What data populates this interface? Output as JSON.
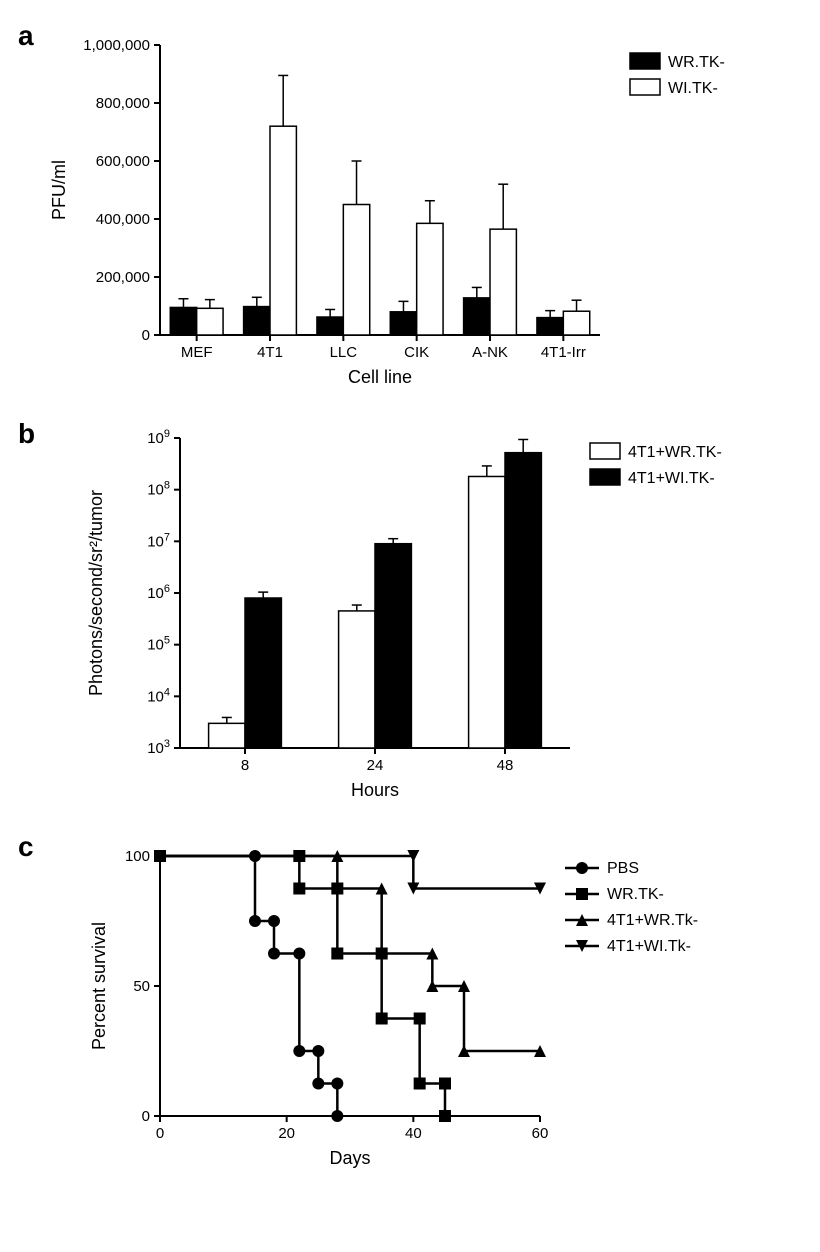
{
  "colors": {
    "bg": "#ffffff",
    "axis": "#000000",
    "text": "#000000",
    "black_fill": "#000000",
    "white_fill": "#ffffff",
    "stroke": "#000000"
  },
  "panel_label_fontsize": 28,
  "panel_a": {
    "label": "a",
    "type": "bar",
    "ylabel": "PFU/ml",
    "xlabel": "Cell line",
    "label_fontsize": 18,
    "tick_fontsize": 15,
    "legend_fontsize": 16,
    "ylim": [
      0,
      1000000
    ],
    "ytick_step": 200000,
    "yticks": [
      "0",
      "200,000",
      "400,000",
      "600,000",
      "800,000",
      "1,000,000"
    ],
    "categories": [
      "MEF",
      "4T1",
      "LLC",
      "CIK",
      "A-NK",
      "4T1-Irr"
    ],
    "series": [
      {
        "name": "WR.TK-",
        "fill": "#000000",
        "values": [
          95000,
          98000,
          62000,
          80000,
          128000,
          60000
        ],
        "errors": [
          30000,
          32000,
          26000,
          36000,
          36000,
          24000
        ]
      },
      {
        "name": "WI.TK-",
        "fill": "#ffffff",
        "values": [
          92000,
          720000,
          450000,
          385000,
          365000,
          82000
        ],
        "errors": [
          30000,
          175000,
          150000,
          78000,
          155000,
          38000
        ]
      }
    ],
    "bar_width": 0.36,
    "line_width": 2
  },
  "panel_b": {
    "label": "b",
    "type": "bar",
    "ylabel": "Photons/second/sr²/tumor",
    "xlabel": "Hours",
    "label_fontsize": 18,
    "tick_fontsize": 15,
    "legend_fontsize": 16,
    "ylog": true,
    "ylim_exp": [
      3,
      9
    ],
    "ytick_exp": [
      3,
      4,
      5,
      6,
      7,
      8,
      9
    ],
    "categories": [
      "8",
      "24",
      "48"
    ],
    "series": [
      {
        "name": "4T1+WR.TK-",
        "fill": "#ffffff",
        "values": [
          3000,
          450000,
          180000000
        ],
        "errors_factor": [
          1.3,
          1.3,
          1.6
        ]
      },
      {
        "name": "4T1+WI.TK-",
        "fill": "#000000",
        "values": [
          800000,
          9000000,
          520000000
        ],
        "errors_factor": [
          1.3,
          1.25,
          1.8
        ]
      }
    ],
    "bar_width": 0.28,
    "line_width": 2
  },
  "panel_c": {
    "label": "c",
    "type": "step-line",
    "ylabel": "Percent survival",
    "xlabel": "Days",
    "label_fontsize": 18,
    "tick_fontsize": 15,
    "legend_fontsize": 16,
    "xlim": [
      0,
      60
    ],
    "xtick_step": 20,
    "ylim": [
      0,
      100
    ],
    "ytick_step": 50,
    "line_width": 2.5,
    "marker_size": 6,
    "series": [
      {
        "name": "PBS",
        "marker": "circle",
        "steps": [
          [
            0,
            100
          ],
          [
            15,
            100
          ],
          [
            15,
            75
          ],
          [
            18,
            75
          ],
          [
            18,
            62.5
          ],
          [
            22,
            62.5
          ],
          [
            22,
            25
          ],
          [
            25,
            25
          ],
          [
            25,
            12.5
          ],
          [
            28,
            12.5
          ],
          [
            28,
            0
          ]
        ]
      },
      {
        "name": "WR.TK-",
        "marker": "square",
        "steps": [
          [
            0,
            100
          ],
          [
            22,
            100
          ],
          [
            22,
            87.5
          ],
          [
            28,
            87.5
          ],
          [
            28,
            62.5
          ],
          [
            35,
            62.5
          ],
          [
            35,
            37.5
          ],
          [
            41,
            37.5
          ],
          [
            41,
            12.5
          ],
          [
            45,
            12.5
          ],
          [
            45,
            0
          ]
        ]
      },
      {
        "name": "4T1+WR.Tk-",
        "marker": "triangle-up",
        "steps": [
          [
            0,
            100
          ],
          [
            28,
            100
          ],
          [
            28,
            87.5
          ],
          [
            35,
            87.5
          ],
          [
            35,
            62.5
          ],
          [
            43,
            62.5
          ],
          [
            43,
            50
          ],
          [
            48,
            50
          ],
          [
            48,
            25
          ],
          [
            60,
            25
          ]
        ]
      },
      {
        "name": "4T1+WI.Tk-",
        "marker": "triangle-down",
        "steps": [
          [
            0,
            100
          ],
          [
            40,
            100
          ],
          [
            40,
            87.5
          ],
          [
            60,
            87.5
          ]
        ]
      }
    ]
  }
}
